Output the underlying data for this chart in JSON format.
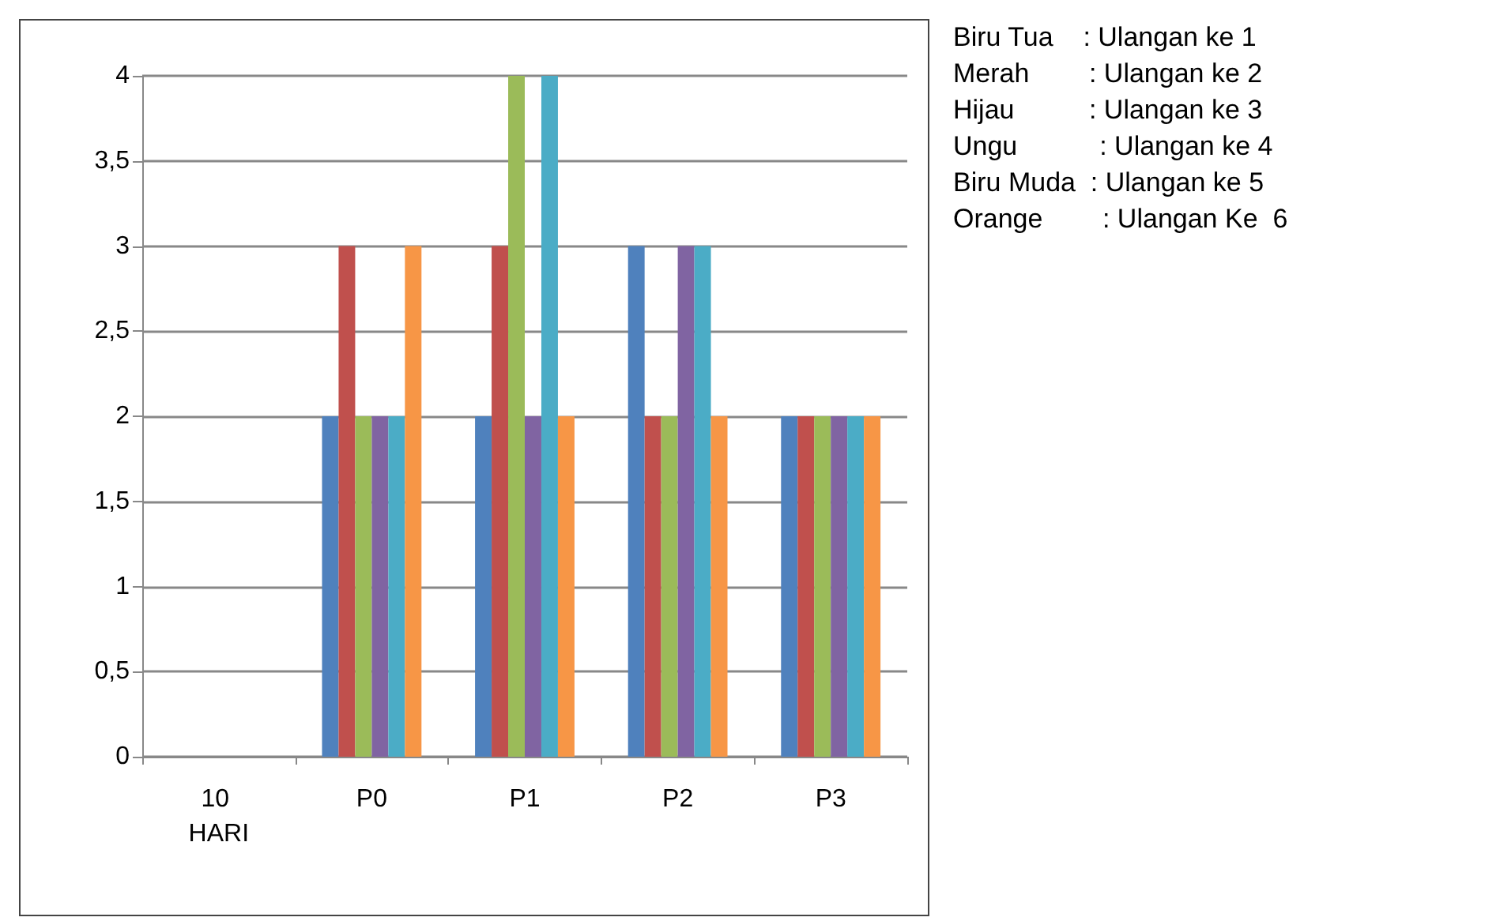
{
  "chart_data": {
    "type": "bar",
    "categories": [
      "10 HARI",
      "P0",
      "P1",
      "P2",
      "P3"
    ],
    "series": [
      {
        "color": "#4f81bd",
        "values": [
          null,
          2,
          2,
          3,
          2
        ]
      },
      {
        "color": "#c0504d",
        "values": [
          null,
          3,
          3,
          2,
          2
        ]
      },
      {
        "color": "#9bbb59",
        "values": [
          null,
          2,
          4,
          2,
          2
        ]
      },
      {
        "color": "#8064a2",
        "values": [
          null,
          2,
          2,
          3,
          2
        ]
      },
      {
        "color": "#4bacc6",
        "values": [
          null,
          2,
          4,
          3,
          2
        ]
      },
      {
        "color": "#f79646",
        "values": [
          null,
          3,
          2,
          2,
          2
        ]
      }
    ],
    "ylim": [
      0,
      4
    ],
    "yticks": [
      0,
      {
        "value": 0.5,
        "label": "0,5"
      },
      1,
      {
        "value": 1.5,
        "label": "1,5"
      },
      2,
      {
        "value": 2.5,
        "label": "2,5"
      },
      3,
      {
        "value": 3.5,
        "label": "3,5"
      },
      4
    ],
    "grid": "y",
    "annotations": [
      "Biru Tua    : Ulangan ke 1",
      "Merah        : Ulangan ke 2",
      "Hijau          : Ulangan ke 3",
      "Ungu           : Ulangan ke 4",
      "Biru Muda  : Ulangan ke 5",
      "Orange        : Ulangan Ke  6"
    ]
  }
}
